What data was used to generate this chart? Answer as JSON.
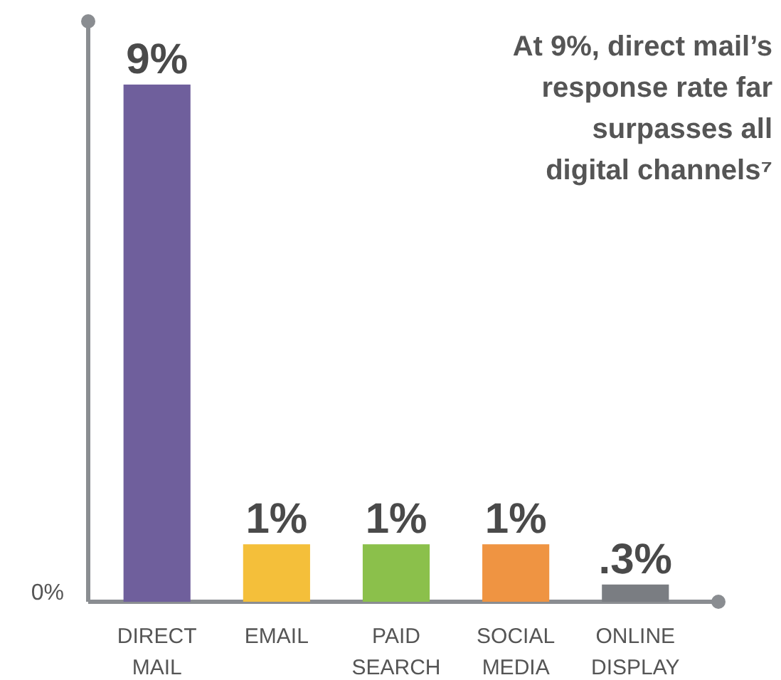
{
  "chart_data": {
    "type": "bar",
    "title": "At 9%, direct mail’s response rate far surpasses all digital channels⁷",
    "categories": [
      "DIRECT MAIL",
      "EMAIL",
      "PAID SEARCH",
      "SOCIAL MEDIA",
      "ONLINE DISPLAY"
    ],
    "values": [
      9,
      1,
      1,
      1,
      0.3
    ],
    "colors": [
      "#6f5f9c",
      "#f4bf3a",
      "#8bc04b",
      "#ef9442",
      "#7a7d82"
    ],
    "value_labels": [
      "9%",
      "1%",
      "1%",
      "1%",
      ".3%"
    ],
    "ylim": [
      0,
      10.1
    ],
    "annotations": [
      "0%"
    ]
  }
}
